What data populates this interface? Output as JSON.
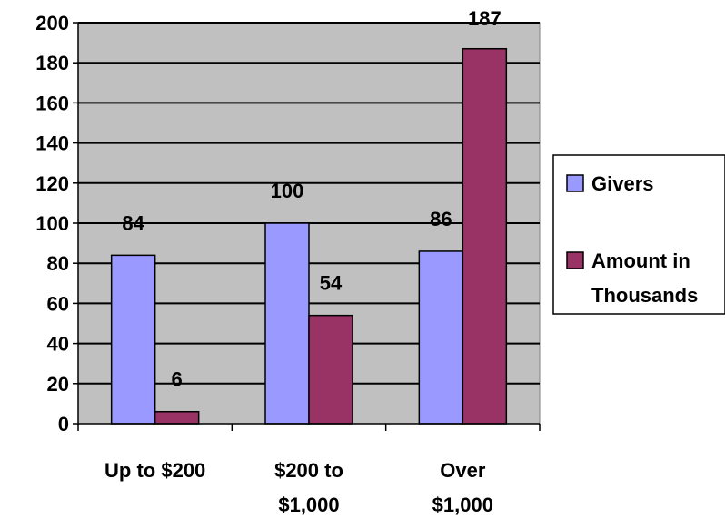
{
  "chart_data": {
    "type": "bar",
    "categories": [
      [
        "Up to $200"
      ],
      [
        "$200 to",
        "$1,000"
      ],
      [
        "Over",
        "$1,000"
      ]
    ],
    "series": [
      {
        "name": "Givers",
        "values": [
          84,
          100,
          86
        ],
        "color": "#9999FF"
      },
      {
        "name": "Amount in Thousands",
        "values": [
          6,
          54,
          187
        ],
        "color": "#993366"
      }
    ],
    "ylim": [
      0,
      200
    ],
    "yticks": [
      0,
      20,
      40,
      60,
      80,
      100,
      120,
      140,
      160,
      180,
      200
    ],
    "grid": true,
    "plot_background": "#C0C0C0",
    "legend_position": "right",
    "legend_lines": [
      [
        "Givers"
      ],
      [
        "Amount in",
        "Thousands"
      ]
    ]
  }
}
